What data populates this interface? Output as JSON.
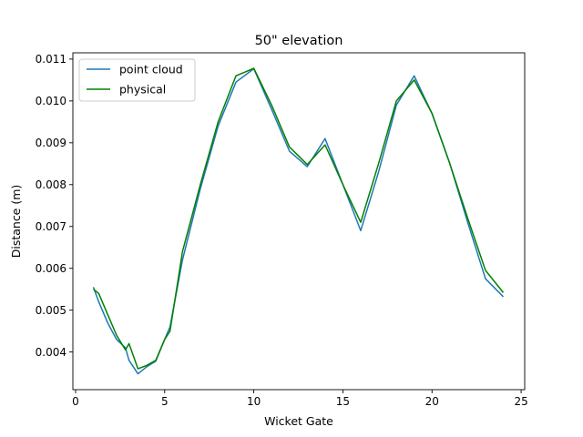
{
  "chart_data": {
    "type": "line",
    "title": "50\" elevation",
    "xlabel": "Wicket Gate",
    "ylabel": "Distance (m)",
    "xlim": [
      -0.15,
      25.2
    ],
    "ylim": [
      0.0031,
      0.01115
    ],
    "x_ticks": [
      0,
      5,
      10,
      15,
      20,
      25
    ],
    "x_tick_labels": [
      "0",
      "5",
      "10",
      "15",
      "20",
      "25"
    ],
    "y_ticks": [
      0.004,
      0.005,
      0.006,
      0.007,
      0.008,
      0.009,
      0.01,
      0.011
    ],
    "y_tick_labels": [
      "0.004",
      "0.005",
      "0.006",
      "0.007",
      "0.008",
      "0.009",
      "0.010",
      "0.011"
    ],
    "grid": false,
    "legend_position": "top-left",
    "series": [
      {
        "name": "point cloud",
        "color": "#1f77b4",
        "x": [
          1.0,
          1.3,
          1.8,
          2.3,
          2.8,
          3.0,
          3.5,
          4.0,
          4.5,
          5.0,
          5.3,
          6,
          7,
          8,
          9,
          10,
          11,
          12,
          13,
          14,
          15,
          16,
          17,
          18,
          19,
          20,
          21,
          22,
          23,
          24
        ],
        "y": [
          0.00555,
          0.0052,
          0.0047,
          0.0043,
          0.0041,
          0.0038,
          0.00348,
          0.00365,
          0.00378,
          0.0043,
          0.0046,
          0.0062,
          0.0079,
          0.0094,
          0.01045,
          0.01077,
          0.0098,
          0.0088,
          0.00843,
          0.0091,
          0.008,
          0.0069,
          0.0083,
          0.0099,
          0.0106,
          0.0097,
          0.0085,
          0.0071,
          0.00575,
          0.00532
        ]
      },
      {
        "name": "physical",
        "color": "#008000",
        "x": [
          1.0,
          1.3,
          1.8,
          2.3,
          2.8,
          3.0,
          3.5,
          4.0,
          4.5,
          5.0,
          5.3,
          6,
          7,
          8,
          9,
          10,
          11,
          12,
          13,
          14,
          15,
          16,
          17,
          18,
          19,
          20,
          21,
          22,
          23,
          24
        ],
        "y": [
          0.0055,
          0.0054,
          0.0049,
          0.0044,
          0.00405,
          0.0042,
          0.0036,
          0.00368,
          0.0038,
          0.0043,
          0.0045,
          0.0064,
          0.008,
          0.0095,
          0.0106,
          0.01078,
          0.0099,
          0.0089,
          0.00848,
          0.00895,
          0.008,
          0.0071,
          0.0085,
          0.01,
          0.0105,
          0.0097,
          0.0085,
          0.0072,
          0.00595,
          0.00542
        ]
      }
    ]
  }
}
